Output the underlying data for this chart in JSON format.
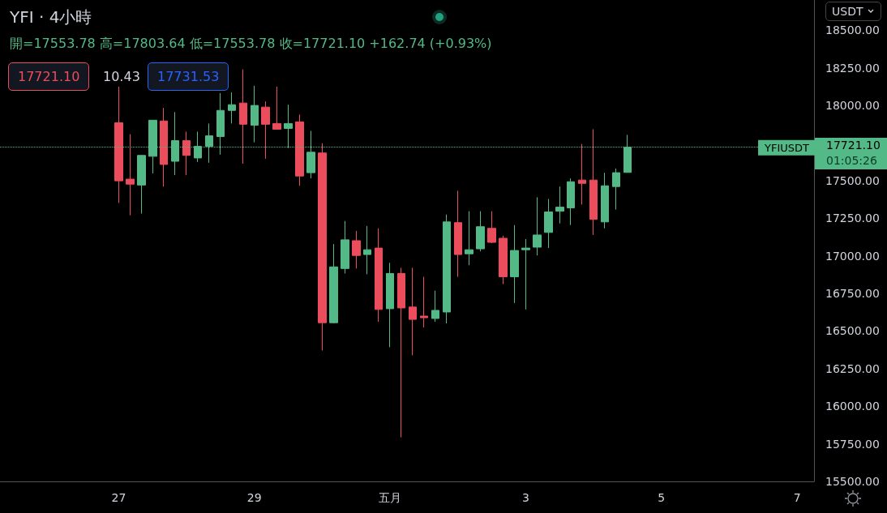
{
  "chart_data": {
    "type": "candlestick",
    "title": "YFI · 4小時",
    "subtitle": "開=17553.78 高=17803.64 低=17553.78 收=17721.10 +162.74 (+0.93%)",
    "categories": [
      null,
      null,
      null,
      null,
      null,
      null,
      null,
      null,
      null,
      null,
      "27",
      null,
      null,
      null,
      null,
      null,
      null,
      null,
      null,
      null,
      null,
      null,
      "29",
      null,
      null,
      null,
      null,
      null,
      null,
      null,
      null,
      null,
      null,
      null,
      "五月",
      null,
      null,
      null,
      null,
      null,
      null,
      null,
      null,
      null,
      null,
      null,
      "3",
      null,
      null,
      null,
      null,
      null,
      null,
      null,
      null,
      null,
      null,
      null,
      "5",
      null,
      null,
      null,
      null,
      null,
      null,
      null,
      null,
      null,
      null,
      null,
      "7",
      null
    ],
    "ohlc": [
      null,
      null,
      null,
      null,
      null,
      null,
      null,
      null,
      null,
      null,
      [
        17884,
        18124,
        17351,
        17498
      ],
      [
        17509,
        17808,
        17269,
        17476
      ],
      [
        17470,
        17667,
        17280,
        17667
      ],
      [
        17661,
        17901,
        17547,
        17901
      ],
      [
        17896,
        17983,
        17460,
        17607
      ],
      [
        17628,
        17955,
        17536,
        17765
      ],
      [
        17765,
        17825,
        17536,
        17667
      ],
      [
        17650,
        17825,
        17623,
        17727
      ],
      [
        17727,
        17879,
        17618,
        17797
      ],
      [
        17792,
        18081,
        17672,
        17966
      ],
      [
        17966,
        18086,
        17879,
        18004
      ],
      [
        18015,
        18239,
        17612,
        17874
      ],
      [
        17868,
        18130,
        17754,
        17999
      ],
      [
        17988,
        18026,
        17645,
        17874
      ],
      [
        17879,
        18124,
        17841,
        17841
      ],
      [
        17846,
        18004,
        17716,
        17879
      ],
      [
        17890,
        17939,
        17465,
        17530
      ],
      [
        17552,
        17830,
        17514,
        17688
      ],
      [
        17683,
        17748,
        16370,
        16555
      ],
      [
        16555,
        17078,
        16550,
        16926
      ],
      [
        16915,
        17231,
        16882,
        17106
      ],
      [
        17100,
        17165,
        16915,
        17002
      ],
      [
        17008,
        17198,
        16877,
        17040
      ],
      [
        17051,
        17182,
        16561,
        16643
      ],
      [
        16648,
        16953,
        16392,
        16882
      ],
      [
        16882,
        16920,
        15793,
        16653
      ],
      [
        16659,
        16920,
        16338,
        16577
      ],
      [
        16599,
        16860,
        16523,
        16588
      ],
      [
        16583,
        16768,
        16561,
        16637
      ],
      [
        16626,
        17274,
        16550,
        17225
      ],
      [
        17220,
        17432,
        16860,
        17008
      ],
      [
        17013,
        17296,
        16937,
        17040
      ],
      [
        17046,
        17296,
        17029,
        17193
      ],
      [
        17182,
        17296,
        17084,
        17089
      ],
      [
        17116,
        17133,
        16811,
        16860
      ],
      [
        16860,
        17204,
        16686,
        17035
      ],
      [
        17040,
        17111,
        16643,
        17051
      ],
      [
        17057,
        17389,
        17002,
        17138
      ],
      [
        17155,
        17378,
        17051,
        17291
      ],
      [
        17296,
        17460,
        17215,
        17323
      ],
      [
        17318,
        17514,
        17204,
        17492
      ],
      [
        17503,
        17743,
        17340,
        17481
      ],
      [
        17503,
        17841,
        17138,
        17242
      ],
      [
        17225,
        17552,
        17182,
        17465
      ],
      [
        17460,
        17580,
        17307,
        17552
      ],
      [
        17553.78,
        17803.64,
        17553.78,
        17721.1
      ],
      null,
      null,
      null,
      null,
      null,
      null,
      null,
      null,
      null,
      null,
      null,
      null,
      null,
      null,
      null,
      null
    ],
    "colors": [
      null,
      null,
      null,
      null,
      null,
      null,
      null,
      null,
      null,
      null,
      "#eb4d5c",
      "#eb4d5c",
      "#53b987",
      "#53b987",
      "#eb4d5c",
      "#53b987",
      "#eb4d5c",
      "#53b987",
      "#53b987",
      "#53b987",
      "#53b987",
      "#eb4d5c",
      "#53b987",
      "#eb4d5c",
      "#eb4d5c",
      "#53b987",
      "#eb4d5c",
      "#53b987",
      "#eb4d5c",
      "#53b987",
      "#53b987",
      "#eb4d5c",
      "#53b987",
      "#eb4d5c",
      "#53b987",
      "#eb4d5c",
      "#eb4d5c",
      "#eb4d5c",
      "#53b987",
      "#53b987",
      "#eb4d5c",
      "#53b987",
      "#53b987",
      "#eb4d5c",
      "#eb4d5c",
      "#53b987",
      "#53b987",
      "#53b987",
      "#53b987",
      "#53b987",
      "#53b987",
      "#eb4d5c",
      "#eb4d5c",
      "#53b987",
      "#53b987",
      "#53b987",
      null,
      null,
      null,
      null,
      null,
      null,
      null,
      null,
      null,
      null,
      null,
      null,
      null,
      null,
      null,
      null
    ],
    "ylim": [
      15500,
      18700
    ],
    "yticks": [
      {
        "value": 15500,
        "label": "15500.00"
      },
      {
        "value": 15750,
        "label": "15750.00"
      },
      {
        "value": 16000,
        "label": "16000.00"
      },
      {
        "value": 16250,
        "label": "16250.00"
      },
      {
        "value": 16500,
        "label": "16500.00"
      },
      {
        "value": 16750,
        "label": "16750.00"
      },
      {
        "value": 17000,
        "label": "17000.00"
      },
      {
        "value": 17250,
        "label": "17250.00"
      },
      {
        "value": 17500,
        "label": "17500.00"
      },
      {
        "value": 18000,
        "label": "18000.00"
      },
      {
        "value": 18250,
        "label": "18250.00"
      },
      {
        "value": 18500,
        "label": "18500.00"
      }
    ],
    "ref_lines": [
      {
        "axis": "y",
        "value": 17721.1,
        "label": "YFIUSDT",
        "color": "#53b987",
        "line_style": "dotted"
      }
    ],
    "annotations": [
      "17721.10",
      "10.43",
      "17731.53",
      "USDT",
      "17721.10",
      "01:05:26"
    ]
  }
}
